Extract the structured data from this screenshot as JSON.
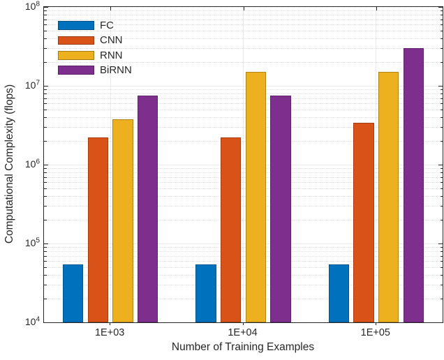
{
  "chart_data": {
    "type": "bar",
    "title": "",
    "xlabel": "Number of Training Examples",
    "ylabel": "Computational Complexity (flops)",
    "yscale": "log",
    "ylim": [
      10000,
      100000000
    ],
    "y_tick_exponents": [
      4,
      5,
      6,
      7,
      8
    ],
    "categories": [
      "1E+03",
      "1E+04",
      "1E+05"
    ],
    "series": [
      {
        "name": "FC",
        "color": "#0072BD",
        "values": [
          54000,
          54000,
          54000
        ]
      },
      {
        "name": "CNN",
        "color": "#D95319",
        "values": [
          2200000,
          2200000,
          3400000
        ]
      },
      {
        "name": "RNN",
        "color": "#EDB120",
        "values": [
          3750000,
          15000000,
          15000000
        ]
      },
      {
        "name": "BiRNN",
        "color": "#7E2F8E",
        "values": [
          7500000,
          7500000,
          30000000
        ]
      }
    ],
    "legend_position": "top-left",
    "legend_box": "off",
    "grid": "on",
    "minor_grid": "on"
  },
  "colors": {
    "axis": "#262626",
    "grid_major": "#ebebeb",
    "grid_minor": "#e0e0e0",
    "background": "#ffffff"
  }
}
